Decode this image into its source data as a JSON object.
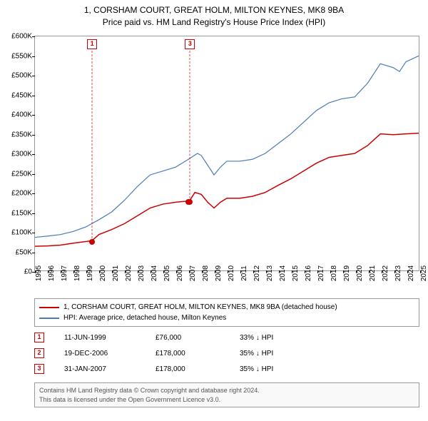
{
  "title": {
    "line1": "1, CORSHAM COURT, GREAT HOLM, MILTON KEYNES, MK8 9BA",
    "line2": "Price paid vs. HM Land Registry's House Price Index (HPI)"
  },
  "chart": {
    "type": "line",
    "ylim": [
      0,
      600000
    ],
    "xlim": [
      1995,
      2025
    ],
    "ytick_step": 50000,
    "ytick_labels": [
      "£0",
      "£50K",
      "£100K",
      "£150K",
      "£200K",
      "£250K",
      "£300K",
      "£350K",
      "£400K",
      "£450K",
      "£500K",
      "£550K",
      "£600K"
    ],
    "xticks": [
      1995,
      1996,
      1997,
      1998,
      1999,
      2000,
      2001,
      2002,
      2003,
      2004,
      2005,
      2006,
      2007,
      2008,
      2009,
      2010,
      2011,
      2012,
      2013,
      2014,
      2015,
      2016,
      2017,
      2018,
      2019,
      2020,
      2021,
      2022,
      2023,
      2024,
      2025
    ],
    "series": [
      {
        "name": "price_paid",
        "color": "#cc0000",
        "width": 1.5,
        "points": [
          [
            1995,
            62000
          ],
          [
            1996,
            63000
          ],
          [
            1997,
            65000
          ],
          [
            1998,
            70000
          ],
          [
            1999.45,
            76000
          ],
          [
            2000,
            92000
          ],
          [
            2001,
            105000
          ],
          [
            2002,
            120000
          ],
          [
            2003,
            140000
          ],
          [
            2004,
            160000
          ],
          [
            2005,
            170000
          ],
          [
            2006,
            175000
          ],
          [
            2006.97,
            178000
          ],
          [
            2007.08,
            178000
          ],
          [
            2007.5,
            200000
          ],
          [
            2008,
            195000
          ],
          [
            2008.5,
            175000
          ],
          [
            2009,
            160000
          ],
          [
            2009.5,
            175000
          ],
          [
            2010,
            185000
          ],
          [
            2011,
            185000
          ],
          [
            2012,
            190000
          ],
          [
            2013,
            200000
          ],
          [
            2014,
            218000
          ],
          [
            2015,
            235000
          ],
          [
            2016,
            255000
          ],
          [
            2017,
            275000
          ],
          [
            2018,
            290000
          ],
          [
            2019,
            295000
          ],
          [
            2020,
            300000
          ],
          [
            2021,
            320000
          ],
          [
            2022,
            350000
          ],
          [
            2023,
            348000
          ],
          [
            2024,
            350000
          ],
          [
            2025,
            352000
          ]
        ]
      },
      {
        "name": "hpi",
        "color": "#4a7bb5",
        "width": 1.2,
        "points": [
          [
            1995,
            85000
          ],
          [
            1996,
            88000
          ],
          [
            1997,
            92000
          ],
          [
            1998,
            100000
          ],
          [
            1999,
            112000
          ],
          [
            2000,
            130000
          ],
          [
            2001,
            150000
          ],
          [
            2002,
            180000
          ],
          [
            2003,
            215000
          ],
          [
            2004,
            245000
          ],
          [
            2005,
            255000
          ],
          [
            2006,
            265000
          ],
          [
            2007,
            285000
          ],
          [
            2007.7,
            300000
          ],
          [
            2008,
            295000
          ],
          [
            2008.7,
            260000
          ],
          [
            2009,
            245000
          ],
          [
            2009.5,
            265000
          ],
          [
            2010,
            280000
          ],
          [
            2011,
            280000
          ],
          [
            2012,
            285000
          ],
          [
            2013,
            300000
          ],
          [
            2014,
            325000
          ],
          [
            2015,
            350000
          ],
          [
            2016,
            380000
          ],
          [
            2017,
            410000
          ],
          [
            2018,
            430000
          ],
          [
            2019,
            440000
          ],
          [
            2020,
            445000
          ],
          [
            2021,
            480000
          ],
          [
            2022,
            530000
          ],
          [
            2023,
            520000
          ],
          [
            2023.5,
            510000
          ],
          [
            2024,
            535000
          ],
          [
            2025,
            550000
          ]
        ]
      }
    ],
    "sale_markers": [
      {
        "index": "1",
        "x": 1999.45,
        "y": 76000
      },
      {
        "index": "2",
        "x": 2006.97,
        "y": 178000
      },
      {
        "index": "3",
        "x": 2007.08,
        "y": 178000
      }
    ],
    "callouts_visible": [
      "1",
      "3"
    ]
  },
  "legend": {
    "items": [
      {
        "color": "#cc0000",
        "label": "1, CORSHAM COURT, GREAT HOLM, MILTON KEYNES, MK8 9BA (detached house)"
      },
      {
        "color": "#4a7bb5",
        "label": "HPI: Average price, detached house, Milton Keynes"
      }
    ]
  },
  "sales": [
    {
      "index": "1",
      "date": "11-JUN-1999",
      "price": "£76,000",
      "delta": "33% ↓ HPI"
    },
    {
      "index": "2",
      "date": "19-DEC-2006",
      "price": "£178,000",
      "delta": "35% ↓ HPI"
    },
    {
      "index": "3",
      "date": "31-JAN-2007",
      "price": "£178,000",
      "delta": "35% ↓ HPI"
    }
  ],
  "footer": {
    "line1": "Contains HM Land Registry data © Crown copyright and database right 2024.",
    "line2": "This data is licensed under the Open Government Licence v3.0."
  }
}
